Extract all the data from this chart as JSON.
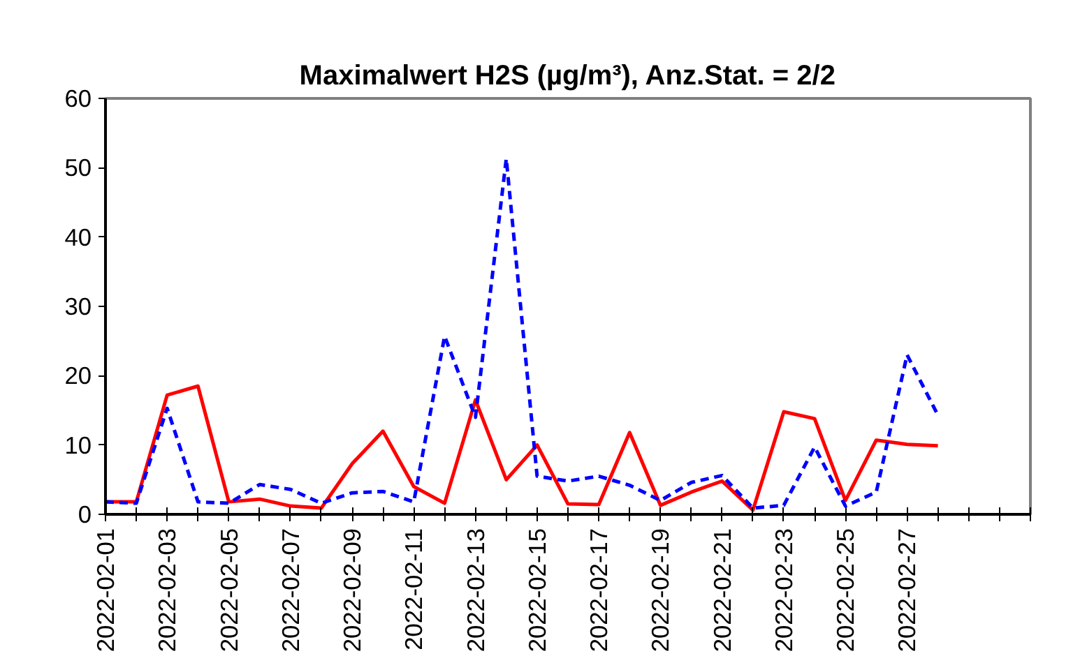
{
  "chart_data": {
    "type": "line",
    "title": "Maximalwert H2S (µg/m³), Anz.Stat. = 2/2",
    "x": [
      "2022-02-01",
      "2022-02-02",
      "2022-02-03",
      "2022-02-04",
      "2022-02-05",
      "2022-02-06",
      "2022-02-07",
      "2022-02-08",
      "2022-02-09",
      "2022-02-10",
      "2022-02-11",
      "2022-02-12",
      "2022-02-13",
      "2022-02-14",
      "2022-02-15",
      "2022-02-16",
      "2022-02-17",
      "2022-02-18",
      "2022-02-19",
      "2022-02-20",
      "2022-02-21",
      "2022-02-22",
      "2022-02-23",
      "2022-02-24",
      "2022-02-25",
      "2022-02-26",
      "2022-02-27",
      "2022-02-28"
    ],
    "series": [
      {
        "color": "#ff0000",
        "line_style": "solid",
        "values": [
          1.8,
          1.8,
          17.2,
          18.5,
          1.8,
          2.2,
          1.2,
          0.9,
          7.3,
          12,
          4,
          1.6,
          16.5,
          5,
          10,
          1.5,
          1.4,
          11.8,
          1.3,
          3.2,
          4.8,
          0.6,
          14.8,
          13.8,
          2,
          10.7,
          10.1,
          9.9
        ]
      },
      {
        "color": "#0000ff",
        "line_style": "dashed",
        "values": [
          1.8,
          1.6,
          15.3,
          1.8,
          1.6,
          4.3,
          3.6,
          1.6,
          3.1,
          3.3,
          1.8,
          25.7,
          14,
          51.3,
          5.5,
          4.8,
          5.5,
          4.2,
          2,
          4.6,
          5.6,
          0.9,
          1.3,
          9.7,
          1.2,
          3.2,
          23,
          14.3
        ]
      }
    ],
    "xlim": [
      "2022-02-01",
      "2022-03-03"
    ],
    "xticks": [
      {
        "value": "2022-02-01",
        "label": "2022-02-01"
      },
      {
        "value": "2022-02-02",
        "label": null
      },
      {
        "value": "2022-02-03",
        "label": "2022-02-03"
      },
      {
        "value": "2022-02-04",
        "label": null
      },
      {
        "value": "2022-02-05",
        "label": "2022-02-05"
      },
      {
        "value": "2022-02-06",
        "label": null
      },
      {
        "value": "2022-02-07",
        "label": "2022-02-07"
      },
      {
        "value": "2022-02-08",
        "label": null
      },
      {
        "value": "2022-02-09",
        "label": "2022-02-09"
      },
      {
        "value": "2022-02-10",
        "label": null
      },
      {
        "value": "2022-02-11",
        "label": "2022-02-11"
      },
      {
        "value": "2022-02-12",
        "label": null
      },
      {
        "value": "2022-02-13",
        "label": "2022-02-13"
      },
      {
        "value": "2022-02-14",
        "label": null
      },
      {
        "value": "2022-02-15",
        "label": "2022-02-15"
      },
      {
        "value": "2022-02-16",
        "label": null
      },
      {
        "value": "2022-02-17",
        "label": "2022-02-17"
      },
      {
        "value": "2022-02-18",
        "label": null
      },
      {
        "value": "2022-02-19",
        "label": "2022-02-19"
      },
      {
        "value": "2022-02-20",
        "label": null
      },
      {
        "value": "2022-02-21",
        "label": "2022-02-21"
      },
      {
        "value": "2022-02-22",
        "label": null
      },
      {
        "value": "2022-02-23",
        "label": "2022-02-23"
      },
      {
        "value": "2022-02-24",
        "label": null
      },
      {
        "value": "2022-02-25",
        "label": "2022-02-25"
      },
      {
        "value": "2022-02-26",
        "label": null
      },
      {
        "value": "2022-02-27",
        "label": "2022-02-27"
      },
      {
        "value": "2022-02-28",
        "label": null
      },
      {
        "value": "2022-03-01",
        "label": null
      },
      {
        "value": "2022-03-02",
        "label": null
      },
      {
        "value": "2022-03-03",
        "label": null
      }
    ],
    "ylim": [
      0,
      60
    ],
    "yticks": [
      0,
      10,
      20,
      30,
      40,
      50,
      60
    ],
    "grid": false,
    "marker": "none"
  }
}
